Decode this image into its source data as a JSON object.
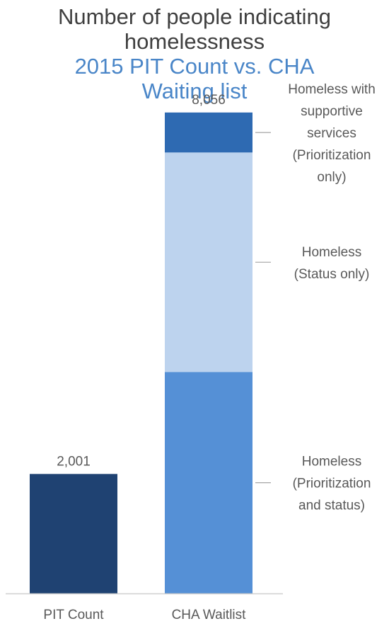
{
  "title": "Number of people indicating homelessness",
  "subtitle": "2015 PIT Count vs. CHA Waiting list",
  "chart_data": {
    "type": "bar",
    "stacked": true,
    "categories": [
      "PIT Count",
      "CHA Waitlist"
    ],
    "totals": [
      "2,001",
      "8,056"
    ],
    "ylim": [
      0,
      8600
    ],
    "grid": false,
    "legend": "right, callout labels",
    "series": [
      {
        "name": "PIT Count",
        "color": "#1f4272",
        "values": [
          2001,
          0
        ]
      },
      {
        "name": "Homeless (Prioritization and status)",
        "label_lines": [
          "Homeless",
          "(Prioritization",
          "and status)"
        ],
        "color": "#5590d6",
        "values": [
          0,
          3710
        ]
      },
      {
        "name": "Homeless (Status only)",
        "label_lines": [
          "Homeless",
          "(Status only)"
        ],
        "color": "#bdd3ee",
        "values": [
          0,
          3676
        ]
      },
      {
        "name": "Homeless with supportive services (Prioritization only)",
        "label_lines": [
          "Homeless with",
          "supportive",
          "services",
          "(Prioritization",
          "only)"
        ],
        "color": "#2e6ab2",
        "values": [
          0,
          670
        ]
      }
    ]
  }
}
